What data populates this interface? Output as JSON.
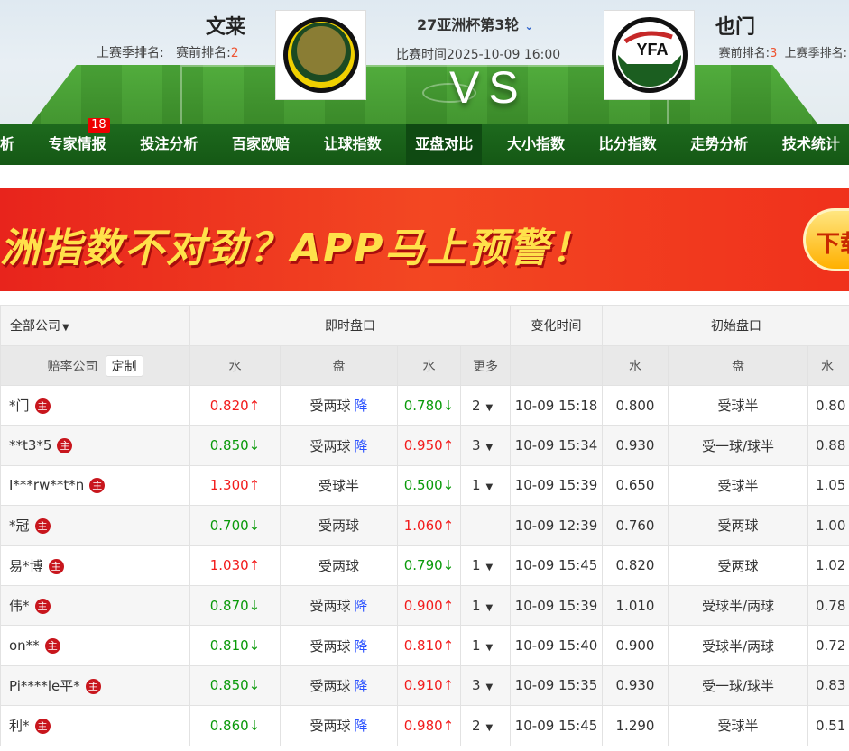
{
  "match": {
    "home": "文莱",
    "away": "也门",
    "league": "27亚洲杯第3轮",
    "time": "比赛时间2025-10-09 16:00",
    "vs": "VS",
    "home_rank_last_label": "上赛季排名:",
    "home_rank_pre_label": "赛前排名:",
    "home_rank_pre": "2",
    "away_rank_pre_label": "赛前排名:",
    "away_rank_pre": "3",
    "away_rank_last_label": "上赛季排名:"
  },
  "nav": {
    "items": [
      "析",
      "专家情报",
      "投注分析",
      "百家欧赔",
      "让球指数",
      "亚盘对比",
      "大小指数",
      "比分指数",
      "走势分析",
      "技术统计"
    ],
    "active": "亚盘对比",
    "badge": "18"
  },
  "banner": {
    "text": "洲指数不对劲？APP马上预警！",
    "button": "下载"
  },
  "table": {
    "filter": "全部公司",
    "group_live": "即时盘口",
    "group_time": "变化时间",
    "group_init": "初始盘口",
    "col_company": "赔率公司",
    "custom": "定制",
    "col_water": "水",
    "col_pan": "盘",
    "col_more": "更多",
    "host_mark": "主",
    "rows": [
      {
        "c": "*门",
        "w1": "0.820↑",
        "w1d": "up",
        "p": "受两球",
        "j": "降",
        "w2": "0.780↓",
        "w2d": "dn",
        "m": "2",
        "t": "10-09 15:18",
        "iw1": "0.800",
        "ip": "受球半",
        "iw2": "0.80"
      },
      {
        "c": "**t3*5",
        "w1": "0.850↓",
        "w1d": "dn",
        "p": "受两球",
        "j": "降",
        "w2": "0.950↑",
        "w2d": "up",
        "m": "3",
        "t": "10-09 15:34",
        "iw1": "0.930",
        "ip": "受一球/球半",
        "iw2": "0.88"
      },
      {
        "c": "I***rw**t*n",
        "w1": "1.300↑",
        "w1d": "up",
        "p": "受球半",
        "j": "",
        "w2": "0.500↓",
        "w2d": "dn",
        "m": "1",
        "t": "10-09 15:39",
        "iw1": "0.650",
        "ip": "受球半",
        "iw2": "1.05"
      },
      {
        "c": "*冠",
        "w1": "0.700↓",
        "w1d": "dn",
        "p": "受两球",
        "j": "",
        "w2": "1.060↑",
        "w2d": "up",
        "m": "",
        "t": "10-09 12:39",
        "iw1": "0.760",
        "ip": "受两球",
        "iw2": "1.00"
      },
      {
        "c": "易*博",
        "w1": "1.030↑",
        "w1d": "up",
        "p": "受两球",
        "j": "",
        "w2": "0.790↓",
        "w2d": "dn",
        "m": "1",
        "t": "10-09 15:45",
        "iw1": "0.820",
        "ip": "受两球",
        "iw2": "1.02"
      },
      {
        "c": "伟*",
        "w1": "0.870↓",
        "w1d": "dn",
        "p": "受两球",
        "j": "降",
        "w2": "0.900↑",
        "w2d": "up",
        "m": "1",
        "t": "10-09 15:39",
        "iw1": "1.010",
        "ip": "受球半/两球",
        "iw2": "0.78"
      },
      {
        "c": "on**",
        "w1": "0.810↓",
        "w1d": "dn",
        "p": "受两球",
        "j": "降",
        "w2": "0.810↑",
        "w2d": "up",
        "m": "1",
        "t": "10-09 15:40",
        "iw1": "0.900",
        "ip": "受球半/两球",
        "iw2": "0.72"
      },
      {
        "c": "Pi****le平*",
        "w1": "0.850↓",
        "w1d": "dn",
        "p": "受两球",
        "j": "降",
        "w2": "0.910↑",
        "w2d": "up",
        "m": "3",
        "t": "10-09 15:35",
        "iw1": "0.930",
        "ip": "受一球/球半",
        "iw2": "0.83"
      },
      {
        "c": "利*",
        "w1": "0.860↓",
        "w1d": "dn",
        "p": "受两球",
        "j": "降",
        "w2": "0.980↑",
        "w2d": "up",
        "m": "2",
        "t": "10-09 15:45",
        "iw1": "1.290",
        "ip": "受球半",
        "iw2": "0.51"
      }
    ]
  },
  "colors": {
    "up": "#f21b1b",
    "down": "#0a9a0a",
    "drop": "#2b52ff",
    "nav": "#1d6a1d"
  }
}
